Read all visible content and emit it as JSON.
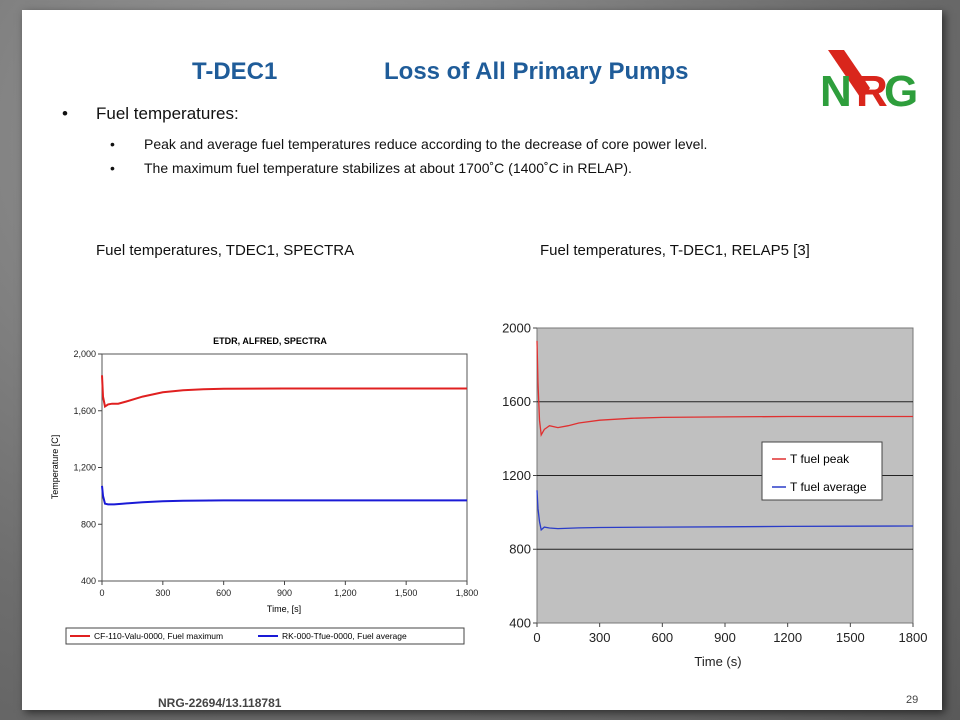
{
  "slide": {
    "title_left": "T-DEC1",
    "title_right": "Loss of All Primary Pumps",
    "logo_text": "NRG",
    "bullet_main": "Fuel temperatures:",
    "bullets": [
      "Peak and average fuel temperatures reduce according to the decrease of core power level.",
      "The maximum fuel temperature stabilizes at about 1700˚C (1400˚C in RELAP)."
    ],
    "caption_left": "Fuel temperatures, TDEC1, SPECTRA",
    "caption_right": "Fuel temperatures, T-DEC1, RELAP5 [3]",
    "footer": "NRG-22694/13.118781",
    "page_number": "29",
    "colors": {
      "title": "#1f5c99",
      "logo_red": "#d9261c",
      "logo_green": "#2e9e3c"
    }
  },
  "chart_data": [
    {
      "type": "line",
      "title": "ETDR, ALFRED, SPECTRA",
      "xlabel": "Time, [s]",
      "ylabel": "Temperature [C]",
      "xlim": [
        0,
        1800
      ],
      "ylim": [
        400,
        2000
      ],
      "xticks": [
        "0",
        "300",
        "600",
        "900",
        "1,200",
        "1,500",
        "1,800"
      ],
      "yticks": [
        "400",
        "800",
        "1,200",
        "1,600",
        "2,000"
      ],
      "legend_position": "bottom",
      "series": [
        {
          "name": "CF-110-Valu-0000, Fuel maximum",
          "color": "#e02020",
          "x": [
            0,
            5,
            15,
            30,
            50,
            80,
            120,
            200,
            300,
            400,
            500,
            600,
            900,
            1200,
            1500,
            1800
          ],
          "y": [
            1850,
            1700,
            1630,
            1645,
            1650,
            1650,
            1665,
            1700,
            1730,
            1745,
            1752,
            1755,
            1757,
            1757,
            1757,
            1757
          ]
        },
        {
          "name": "RK-000-Tfue-0000, Fuel average",
          "color": "#1a1ad6",
          "x": [
            0,
            5,
            15,
            30,
            60,
            100,
            200,
            300,
            400,
            600,
            900,
            1200,
            1500,
            1800
          ],
          "y": [
            1070,
            1000,
            945,
            940,
            940,
            945,
            955,
            962,
            966,
            968,
            968,
            968,
            968,
            968
          ]
        }
      ]
    },
    {
      "type": "line",
      "title": "",
      "xlabel": "Time (s)",
      "ylabel": "",
      "xlim": [
        0,
        1800
      ],
      "ylim": [
        400,
        2000
      ],
      "xticks": [
        "0",
        "300",
        "600",
        "900",
        "1200",
        "1500",
        "1800"
      ],
      "yticks": [
        "400",
        "800",
        "1200",
        "1600",
        "2000"
      ],
      "grid": true,
      "legend_position": "right",
      "series": [
        {
          "name": "T fuel peak",
          "color": "#e03030",
          "x": [
            0,
            5,
            12,
            20,
            35,
            60,
            100,
            150,
            200,
            300,
            450,
            600,
            900,
            1200,
            1500,
            1800
          ],
          "y": [
            1930,
            1700,
            1500,
            1420,
            1450,
            1470,
            1460,
            1470,
            1485,
            1500,
            1510,
            1515,
            1518,
            1520,
            1520,
            1520
          ]
        },
        {
          "name": "T fuel average",
          "color": "#2a3cc8",
          "x": [
            0,
            5,
            12,
            20,
            35,
            60,
            100,
            200,
            300,
            600,
            900,
            1200,
            1500,
            1800
          ],
          "y": [
            1120,
            1020,
            950,
            905,
            920,
            915,
            912,
            916,
            918,
            920,
            922,
            924,
            925,
            926
          ]
        }
      ]
    }
  ]
}
